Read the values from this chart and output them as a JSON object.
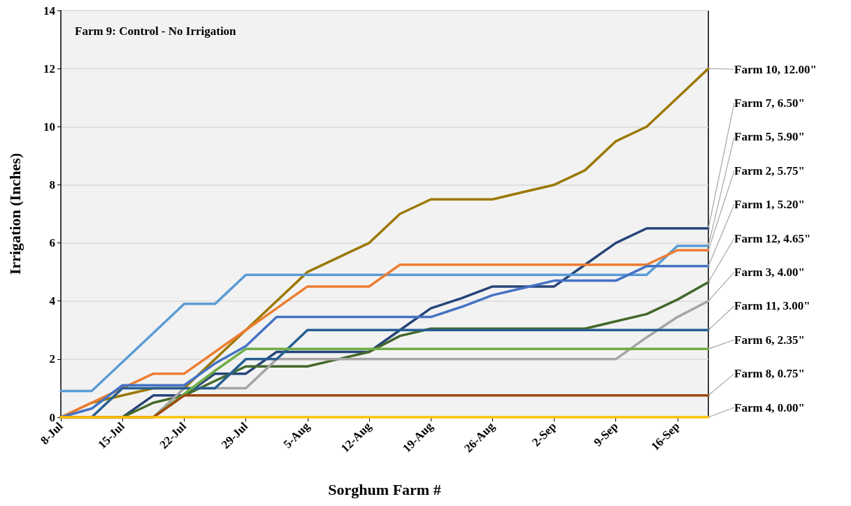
{
  "chart_data": {
    "type": "line",
    "xlabel": "Sorghum Farm #",
    "ylabel": "Irrigation (Inches)",
    "annotations": [
      "Farm 9: Control - No Irrigation"
    ],
    "categories": [
      "8-Jul",
      null,
      "15-Jul",
      null,
      "22-Jul",
      null,
      "29-Jul",
      null,
      "5-Aug",
      null,
      "12-Aug",
      null,
      "19-Aug",
      null,
      "26-Aug",
      null,
      "2-Sep",
      null,
      "9-Sep",
      null,
      "16-Sep",
      null
    ],
    "ylim": [
      0,
      14
    ],
    "yticks": [
      0,
      2,
      4,
      6,
      8,
      10,
      12,
      14
    ],
    "grid": "y",
    "marker": "none",
    "line_style": "solid",
    "series": [
      {
        "color": "#ffc000",
        "values": [
          0,
          0,
          0,
          0,
          0,
          0,
          0,
          0,
          0,
          0,
          0,
          0,
          0,
          0,
          0,
          0,
          0,
          0,
          0,
          0,
          0,
          0
        ],
        "value_labels": [
          null,
          null,
          null,
          null,
          null,
          null,
          null,
          null,
          null,
          null,
          null,
          null,
          null,
          null,
          null,
          null,
          null,
          null,
          null,
          null,
          null,
          "Farm 4, 0.00\""
        ]
      },
      {
        "color": "#9e480e",
        "values": [
          0,
          0,
          0,
          0,
          0.75,
          0.75,
          0.75,
          0.75,
          0.75,
          0.75,
          0.75,
          0.75,
          0.75,
          0.75,
          0.75,
          0.75,
          0.75,
          0.75,
          0.75,
          0.75,
          0.75,
          0.75
        ],
        "value_labels": [
          null,
          null,
          null,
          null,
          null,
          null,
          null,
          null,
          null,
          null,
          null,
          null,
          null,
          null,
          null,
          null,
          null,
          null,
          null,
          null,
          null,
          "Farm 8, 0.75\""
        ]
      },
      {
        "color": "#70ad47",
        "values": [
          0,
          0,
          0,
          0,
          0.8,
          1.6,
          2.35,
          2.35,
          2.35,
          2.35,
          2.35,
          2.35,
          2.35,
          2.35,
          2.35,
          2.35,
          2.35,
          2.35,
          2.35,
          2.35,
          2.35,
          2.35
        ],
        "value_labels": [
          null,
          null,
          null,
          null,
          null,
          null,
          null,
          null,
          null,
          null,
          null,
          null,
          null,
          null,
          null,
          null,
          null,
          null,
          null,
          null,
          null,
          "Farm 6, 2.35\""
        ]
      },
      {
        "color": "#255e91",
        "values": [
          0,
          0,
          1,
          1,
          1,
          1,
          2,
          2,
          3,
          3,
          3,
          3,
          3,
          3,
          3,
          3,
          3,
          3,
          3,
          3,
          3,
          3
        ],
        "value_labels": [
          null,
          null,
          null,
          null,
          null,
          null,
          null,
          null,
          null,
          null,
          null,
          null,
          null,
          null,
          null,
          null,
          null,
          null,
          null,
          null,
          null,
          "Farm 11, 3.00\""
        ]
      },
      {
        "color": "#a5a5a5",
        "values": [
          0,
          0,
          0,
          0,
          1,
          1,
          1,
          2,
          2,
          2,
          2,
          2,
          2,
          2,
          2,
          2,
          2,
          2,
          2,
          2.75,
          3.45,
          4
        ],
        "value_labels": [
          null,
          null,
          null,
          null,
          null,
          null,
          null,
          null,
          null,
          null,
          null,
          null,
          null,
          null,
          null,
          null,
          null,
          null,
          null,
          null,
          null,
          "Farm 3, 4.00\""
        ]
      },
      {
        "color": "#43682b",
        "values": [
          0,
          0,
          0,
          0.5,
          0.75,
          1.25,
          1.75,
          1.75,
          1.75,
          2,
          2.25,
          2.8,
          3.05,
          3.05,
          3.05,
          3.05,
          3.05,
          3.05,
          3.3,
          3.55,
          4.05,
          4.65
        ],
        "value_labels": [
          null,
          null,
          null,
          null,
          null,
          null,
          null,
          null,
          null,
          null,
          null,
          null,
          null,
          null,
          null,
          null,
          null,
          null,
          null,
          null,
          null,
          "Farm 12, 4.65\""
        ]
      },
      {
        "color": "#4472c4",
        "values": [
          0,
          0.3,
          1.1,
          1.1,
          1.1,
          1.85,
          2.45,
          3.45,
          3.45,
          3.45,
          3.45,
          3.45,
          3.45,
          3.8,
          4.2,
          4.45,
          4.7,
          4.7,
          4.7,
          5.2,
          5.2,
          5.2
        ],
        "value_labels": [
          null,
          null,
          null,
          null,
          null,
          null,
          null,
          null,
          null,
          null,
          null,
          null,
          null,
          null,
          null,
          null,
          null,
          null,
          null,
          null,
          null,
          "Farm 1, 5.20\""
        ]
      },
      {
        "color": "#ed7d31",
        "values": [
          0,
          0.5,
          1,
          1.5,
          1.5,
          2.25,
          3,
          3.75,
          4.5,
          4.5,
          4.5,
          5.25,
          5.25,
          5.25,
          5.25,
          5.25,
          5.25,
          5.25,
          5.25,
          5.25,
          5.75,
          5.75
        ],
        "value_labels": [
          null,
          null,
          null,
          null,
          null,
          null,
          null,
          null,
          null,
          null,
          null,
          null,
          null,
          null,
          null,
          null,
          null,
          null,
          null,
          null,
          null,
          "Farm 2, 5.75\""
        ]
      },
      {
        "color": "#5b9bd5",
        "values": [
          0.9,
          0.9,
          1.9,
          2.9,
          3.9,
          3.9,
          4.9,
          4.9,
          4.9,
          4.9,
          4.9,
          4.9,
          4.9,
          4.9,
          4.9,
          4.9,
          4.9,
          4.9,
          4.9,
          4.9,
          5.9,
          5.9
        ],
        "value_labels": [
          null,
          null,
          null,
          null,
          null,
          null,
          null,
          null,
          null,
          null,
          null,
          null,
          null,
          null,
          null,
          null,
          null,
          null,
          null,
          null,
          null,
          "Farm 5, 5.90\""
        ]
      },
      {
        "color": "#264478",
        "values": [
          0,
          0,
          0,
          0.75,
          0.75,
          1.5,
          1.5,
          2.25,
          2.25,
          2.25,
          2.25,
          3,
          3.75,
          4.1,
          4.5,
          4.5,
          4.5,
          5.25,
          6,
          6.5,
          6.5,
          6.5
        ],
        "value_labels": [
          null,
          null,
          null,
          null,
          null,
          null,
          null,
          null,
          null,
          null,
          null,
          null,
          null,
          null,
          null,
          null,
          null,
          null,
          null,
          null,
          null,
          "Farm 7, 6.50\""
        ]
      },
      {
        "color": "#9c7800",
        "values": [
          0,
          0.5,
          0.75,
          1,
          1,
          2,
          3,
          4,
          5,
          5.5,
          6,
          7,
          7.5,
          7.5,
          7.5,
          7.75,
          8,
          8.5,
          9.5,
          10,
          11,
          12
        ],
        "value_labels": [
          null,
          null,
          null,
          null,
          null,
          null,
          null,
          null,
          null,
          null,
          null,
          null,
          null,
          null,
          null,
          null,
          null,
          null,
          null,
          null,
          null,
          "Farm 10, 12.00\""
        ]
      }
    ]
  }
}
